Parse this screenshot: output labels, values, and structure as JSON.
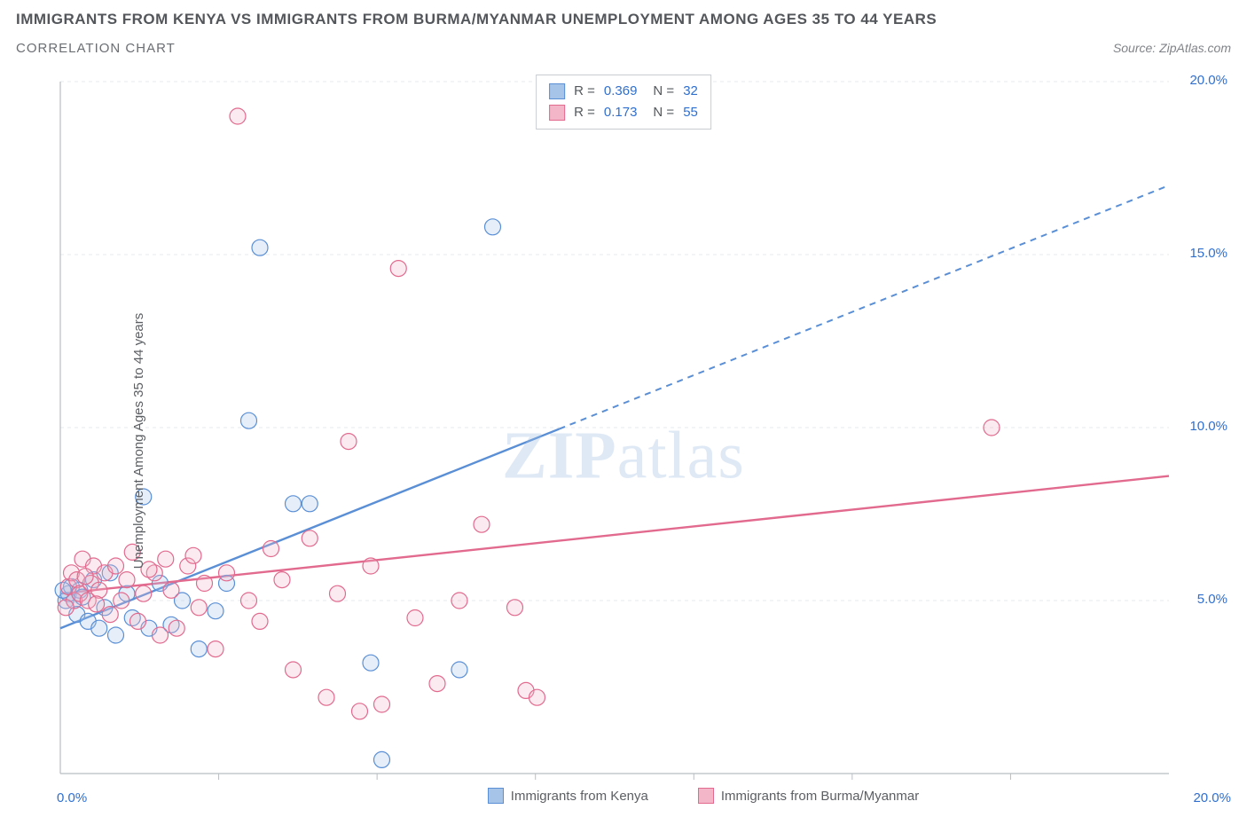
{
  "title": "IMMIGRANTS FROM KENYA VS IMMIGRANTS FROM BURMA/MYANMAR UNEMPLOYMENT AMONG AGES 35 TO 44 YEARS",
  "subtitle": "CORRELATION CHART",
  "source_label": "Source: ",
  "source_name": "ZipAtlas.com",
  "y_axis_label": "Unemployment Among Ages 35 to 44 years",
  "watermark_bold": "ZIP",
  "watermark_rest": "atlas",
  "chart": {
    "type": "scatter",
    "xlim": [
      0,
      20
    ],
    "ylim": [
      0,
      20
    ],
    "x_ticks": [
      0,
      20
    ],
    "x_tick_labels": [
      "0.0%",
      "20.0%"
    ],
    "y_ticks_right": [
      5,
      10,
      15,
      20
    ],
    "y_tick_labels": [
      "5.0%",
      "10.0%",
      "15.0%",
      "20.0%"
    ],
    "grid_y": [
      5,
      10,
      15,
      20
    ],
    "grid_color": "#e6e8eb",
    "axis_color": "#b9bdc2",
    "background_color": "#ffffff",
    "marker_radius": 9,
    "marker_stroke_width": 1.2,
    "marker_fill_opacity": 0.28,
    "series": [
      {
        "name": "Immigrants from Kenya",
        "color_stroke": "#5a8fd6",
        "color_fill": "#a6c4e8",
        "R": "0.369",
        "N": "32",
        "trend": {
          "x1": 0,
          "y1": 4.2,
          "x2": 20,
          "y2": 17.0,
          "solid_until_x": 9.0
        },
        "points": [
          [
            0.1,
            5.0
          ],
          [
            0.15,
            5.2
          ],
          [
            0.2,
            5.4
          ],
          [
            0.25,
            5.0
          ],
          [
            0.3,
            4.6
          ],
          [
            0.35,
            5.3
          ],
          [
            0.4,
            5.1
          ],
          [
            0.5,
            4.4
          ],
          [
            0.6,
            5.6
          ],
          [
            0.7,
            4.2
          ],
          [
            0.8,
            4.8
          ],
          [
            0.9,
            5.8
          ],
          [
            1.0,
            4.0
          ],
          [
            1.2,
            5.2
          ],
          [
            1.3,
            4.5
          ],
          [
            1.5,
            8.0
          ],
          [
            1.6,
            4.2
          ],
          [
            1.8,
            5.5
          ],
          [
            2.0,
            4.3
          ],
          [
            2.2,
            5.0
          ],
          [
            2.5,
            3.6
          ],
          [
            2.8,
            4.7
          ],
          [
            3.0,
            5.5
          ],
          [
            3.4,
            10.2
          ],
          [
            3.6,
            15.2
          ],
          [
            4.2,
            7.8
          ],
          [
            4.5,
            7.8
          ],
          [
            5.6,
            3.2
          ],
          [
            5.8,
            0.4
          ],
          [
            7.2,
            3.0
          ],
          [
            7.8,
            15.8
          ],
          [
            0.05,
            5.3
          ]
        ]
      },
      {
        "name": "Immigrants from Burma/Myanmar",
        "color_stroke": "#e26a8f",
        "color_fill": "#f2b6c8",
        "R": "0.173",
        "N": "55",
        "trend": {
          "x1": 0,
          "y1": 5.2,
          "x2": 20,
          "y2": 8.6,
          "solid_until_x": 20
        },
        "points": [
          [
            0.15,
            5.4
          ],
          [
            0.2,
            5.8
          ],
          [
            0.25,
            5.0
          ],
          [
            0.3,
            5.6
          ],
          [
            0.35,
            5.2
          ],
          [
            0.4,
            6.2
          ],
          [
            0.5,
            5.0
          ],
          [
            0.55,
            5.5
          ],
          [
            0.6,
            6.0
          ],
          [
            0.7,
            5.3
          ],
          [
            0.8,
            5.8
          ],
          [
            0.9,
            4.6
          ],
          [
            1.0,
            6.0
          ],
          [
            1.1,
            5.0
          ],
          [
            1.2,
            5.6
          ],
          [
            1.3,
            6.4
          ],
          [
            1.4,
            4.4
          ],
          [
            1.5,
            5.2
          ],
          [
            1.7,
            5.8
          ],
          [
            1.8,
            4.0
          ],
          [
            1.9,
            6.2
          ],
          [
            2.0,
            5.3
          ],
          [
            2.1,
            4.2
          ],
          [
            2.3,
            6.0
          ],
          [
            2.5,
            4.8
          ],
          [
            2.6,
            5.5
          ],
          [
            2.8,
            3.6
          ],
          [
            3.0,
            5.8
          ],
          [
            3.2,
            19.0
          ],
          [
            3.4,
            5.0
          ],
          [
            3.6,
            4.4
          ],
          [
            3.8,
            6.5
          ],
          [
            4.0,
            5.6
          ],
          [
            4.2,
            3.0
          ],
          [
            4.5,
            6.8
          ],
          [
            4.8,
            2.2
          ],
          [
            5.0,
            5.2
          ],
          [
            5.2,
            9.6
          ],
          [
            5.4,
            1.8
          ],
          [
            5.6,
            6.0
          ],
          [
            5.8,
            2.0
          ],
          [
            6.1,
            14.6
          ],
          [
            6.4,
            4.5
          ],
          [
            6.8,
            2.6
          ],
          [
            7.2,
            5.0
          ],
          [
            7.6,
            7.2
          ],
          [
            8.2,
            4.8
          ],
          [
            8.4,
            2.4
          ],
          [
            8.6,
            2.2
          ],
          [
            1.6,
            5.9
          ],
          [
            2.4,
            6.3
          ],
          [
            0.45,
            5.7
          ],
          [
            0.65,
            4.9
          ],
          [
            16.8,
            10.0
          ],
          [
            0.1,
            4.8
          ]
        ]
      }
    ]
  },
  "bottom_legend": {
    "series1_label": "Immigrants from Kenya",
    "series2_label": "Immigrants from Burma/Myanmar"
  }
}
